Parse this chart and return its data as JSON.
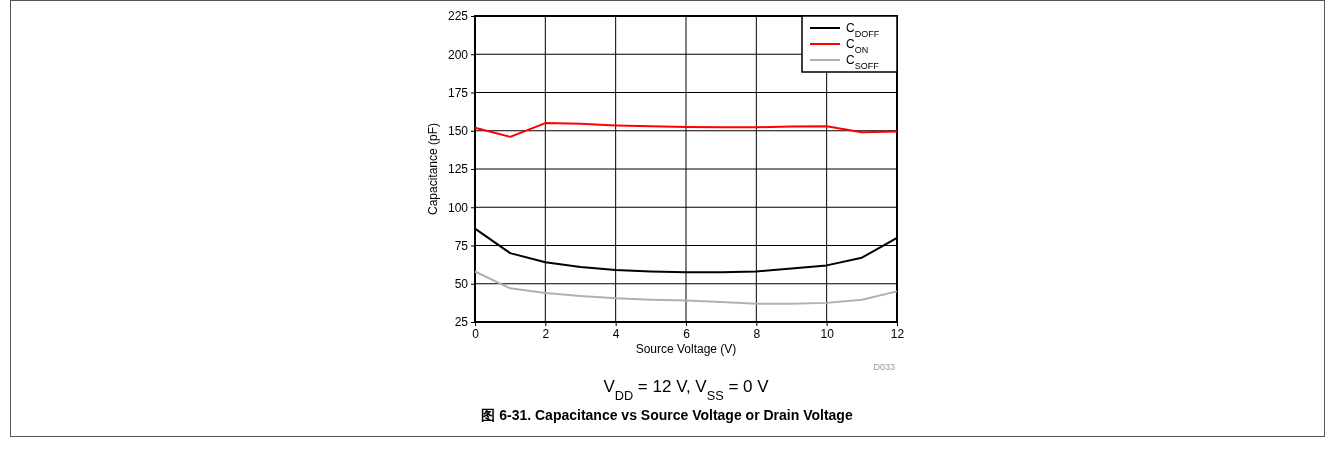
{
  "chart_data": {
    "type": "line",
    "title": "图 6-31. Capacitance vs Source Voltage or Drain Voltage",
    "subtitle": "V$_{DD}$ = 12 V, V$_{SS}$ = 0 V",
    "xlabel": "Source Voltage (V)",
    "ylabel": "Capacitance (pF)",
    "annotations": [
      "D033"
    ],
    "x": [
      0,
      1,
      2,
      3,
      4,
      5,
      6,
      7,
      8,
      9,
      10,
      11,
      12
    ],
    "series": [
      {
        "name": "C$_{DOFF}$",
        "color": "#000000",
        "values": [
          86,
          70,
          64,
          61,
          59,
          58,
          57.5,
          57.5,
          58,
          60,
          62,
          67,
          80
        ]
      },
      {
        "name": "C$_{ON}$",
        "color": "#ff0000",
        "values": [
          152,
          146,
          155,
          154.5,
          153.5,
          153,
          152.5,
          152.3,
          152.3,
          152.7,
          153,
          149,
          149.5
        ]
      },
      {
        "name": "C$_{SOFF}$",
        "color": "#b0b0b0",
        "values": [
          58,
          47,
          44,
          42,
          40.5,
          39.5,
          39,
          38,
          37,
          37,
          37.5,
          39.5,
          45
        ]
      }
    ],
    "xlim": [
      0,
      12
    ],
    "xticks": [
      0,
      2,
      4,
      6,
      8,
      10,
      12
    ],
    "ylim": [
      25,
      225
    ],
    "yticks": [
      25,
      50,
      75,
      100,
      125,
      150,
      175,
      200,
      225
    ],
    "grid": true,
    "legend": "top right",
    "line_style": "solid",
    "marker": "none"
  }
}
